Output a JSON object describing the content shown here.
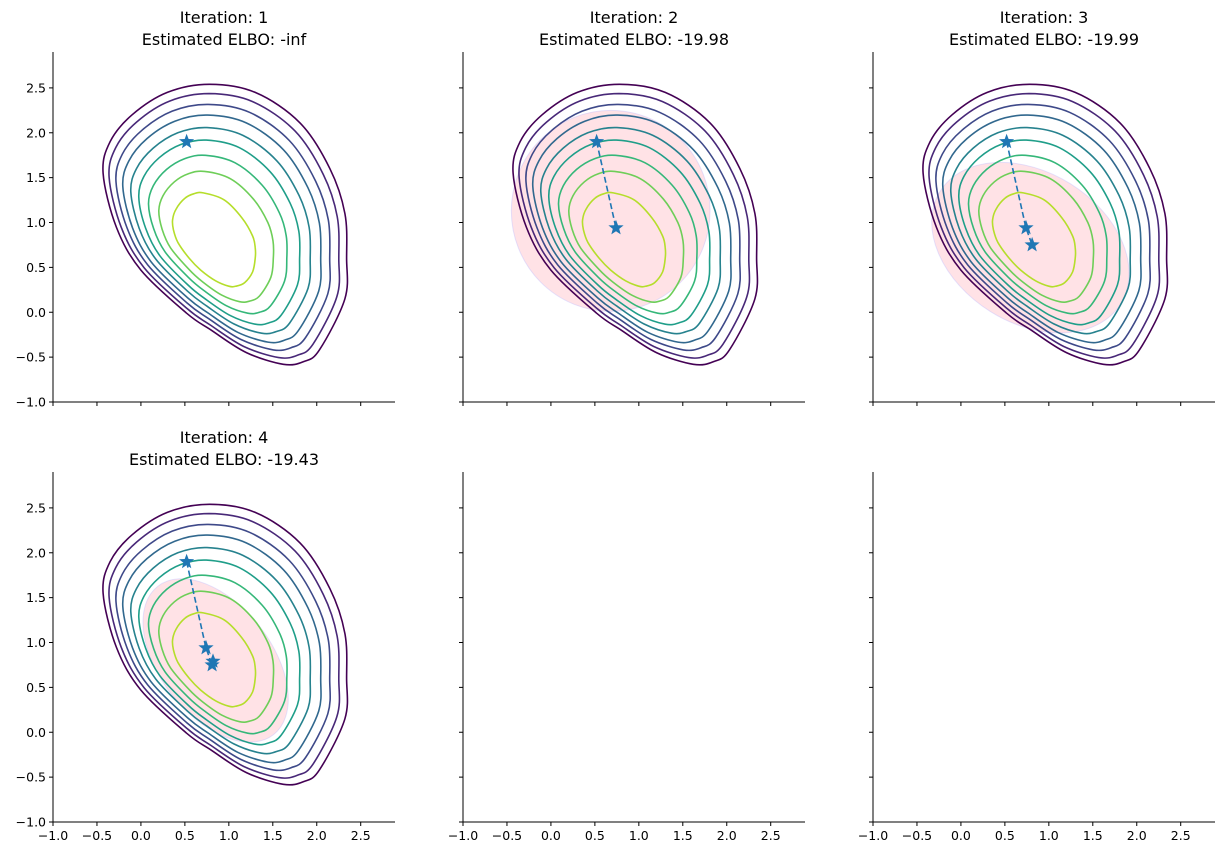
{
  "chart_data": {
    "type": "contour",
    "grid": false,
    "xlim": [
      -1.0,
      2.89
    ],
    "ylim": [
      -1.0,
      2.9
    ],
    "xticks": [
      "−1.0",
      "−0.5",
      "0.0",
      "0.5",
      "1.0",
      "1.5",
      "2.0",
      "2.5"
    ],
    "xtick_values": [
      -1.0,
      -0.5,
      0.0,
      0.5,
      1.0,
      1.5,
      2.0,
      2.5
    ],
    "yticks": [
      "−1.0",
      "−0.5",
      "0.0",
      "0.5",
      "1.0",
      "1.5",
      "2.0",
      "2.5"
    ],
    "ytick_values": [
      -1.0,
      -0.5,
      0.0,
      0.5,
      1.0,
      1.5,
      2.0,
      2.5
    ],
    "contour_colormap": "viridis",
    "contour_colors": [
      "#440154",
      "#482878",
      "#3e4989",
      "#31688e",
      "#26828e",
      "#1f9e89",
      "#35b779",
      "#6ece58",
      "#b5de2b"
    ],
    "mean_marker_color": "#1f77b4",
    "ellipse_fill": "#ffb6c1",
    "panels": [
      {
        "title_line1": "Iteration: 1",
        "title_line2": "Estimated ELBO: -inf",
        "has_contours": true,
        "means": [
          [
            0.52,
            1.9
          ]
        ],
        "ellipse": null
      },
      {
        "title_line1": "Iteration: 2",
        "title_line2": "Estimated ELBO: -19.98",
        "has_contours": true,
        "means": [
          [
            0.52,
            1.9
          ],
          [
            0.74,
            0.94
          ]
        ],
        "ellipse": {
          "center": [
            0.68,
            1.13
          ],
          "semi_major": 1.13,
          "semi_minor": 1.12,
          "angle_deg": 0
        }
      },
      {
        "title_line1": "Iteration: 3",
        "title_line2": "Estimated ELBO: -19.99",
        "has_contours": true,
        "means": [
          [
            0.52,
            1.9
          ],
          [
            0.74,
            0.94
          ],
          [
            0.81,
            0.75
          ]
        ],
        "ellipse": {
          "center": [
            0.79,
            0.72
          ],
          "semi_major": 1.21,
          "semi_minor": 0.84,
          "angle_deg": -32
        }
      },
      {
        "title_line1": "Iteration: 4",
        "title_line2": "Estimated ELBO: -19.43",
        "has_contours": true,
        "means": [
          [
            0.52,
            1.9
          ],
          [
            0.74,
            0.94
          ],
          [
            0.81,
            0.75
          ],
          [
            0.82,
            0.79
          ]
        ],
        "ellipse": {
          "center": [
            0.85,
            0.8
          ],
          "semi_major": 1.07,
          "semi_minor": 0.62,
          "angle_deg": -52
        }
      },
      {
        "title_line1": "",
        "title_line2": "",
        "has_contours": false,
        "means": [],
        "ellipse": null
      },
      {
        "title_line1": "",
        "title_line2": "",
        "has_contours": false,
        "means": [],
        "ellipse": null
      }
    ]
  }
}
